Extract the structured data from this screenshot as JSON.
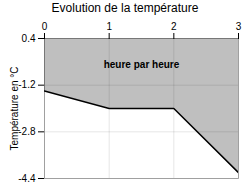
{
  "chart_data": {
    "type": "area",
    "title": "Evolution de la température",
    "ylabel": "Température en °C",
    "annotations": [
      "heure par heure"
    ],
    "x": [
      0,
      1,
      2,
      3
    ],
    "values": [
      -1.4,
      -2.0,
      -2.0,
      -4.2
    ],
    "xlim": [
      0,
      3
    ],
    "ylim": [
      -4.4,
      0.4
    ],
    "xticks": [
      0,
      1,
      2,
      3
    ],
    "yticks": [
      0.4,
      -1.2,
      -2.8,
      -4.4
    ],
    "grid": true
  }
}
